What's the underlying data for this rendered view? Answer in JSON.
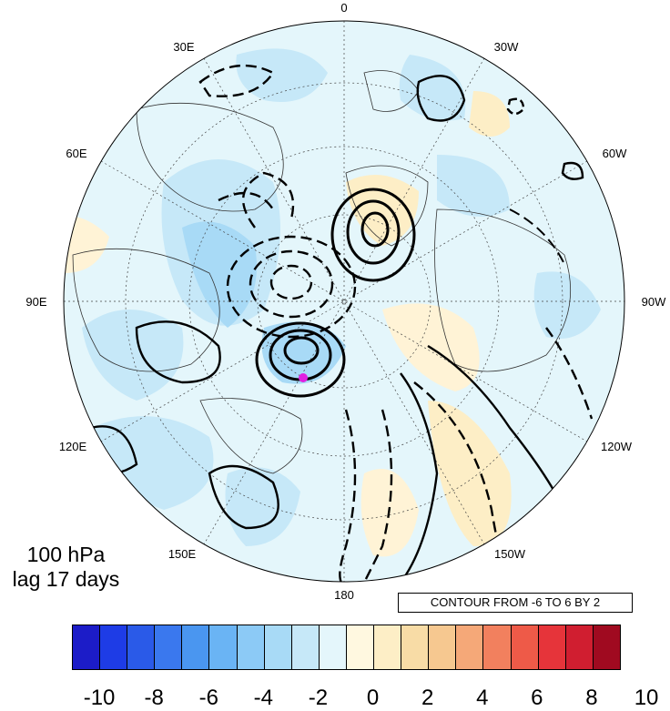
{
  "map": {
    "projection": "north polar stereographic",
    "center_marker_color": "#e020e0",
    "longitude_labels": [
      {
        "text": "0",
        "lon": 0
      },
      {
        "text": "30W",
        "lon": -30
      },
      {
        "text": "60W",
        "lon": -60
      },
      {
        "text": "90W",
        "lon": -90
      },
      {
        "text": "120W",
        "lon": -120
      },
      {
        "text": "150W",
        "lon": -150
      },
      {
        "text": "180",
        "lon": 180
      },
      {
        "text": "150E",
        "lon": 150
      },
      {
        "text": "120E",
        "lon": 120
      },
      {
        "text": "90E",
        "lon": 90
      },
      {
        "text": "60E",
        "lon": 60
      },
      {
        "text": "30E",
        "lon": 30
      }
    ]
  },
  "panel": {
    "level": "100 hPa",
    "lag": "lag 17 days"
  },
  "contour_note": "CONTOUR FROM -6 TO 6 BY 2",
  "colorbar": {
    "colors": [
      "#1c1cc8",
      "#1e3ce6",
      "#2a5ae8",
      "#3a78ee",
      "#4a96f0",
      "#6ab4f4",
      "#8ccaf6",
      "#a8daf6",
      "#c6e8f8",
      "#e4f6fb",
      "#fff8e0",
      "#fdeec6",
      "#f8dca6",
      "#f6c890",
      "#f5a878",
      "#f2805e",
      "#ee5a48",
      "#e6343a",
      "#d01e30",
      "#a00a20"
    ],
    "tick_labels": [
      "-10",
      "-8",
      "-6",
      "-4",
      "-2",
      "0",
      "2",
      "4",
      "6",
      "8",
      "10"
    ]
  }
}
